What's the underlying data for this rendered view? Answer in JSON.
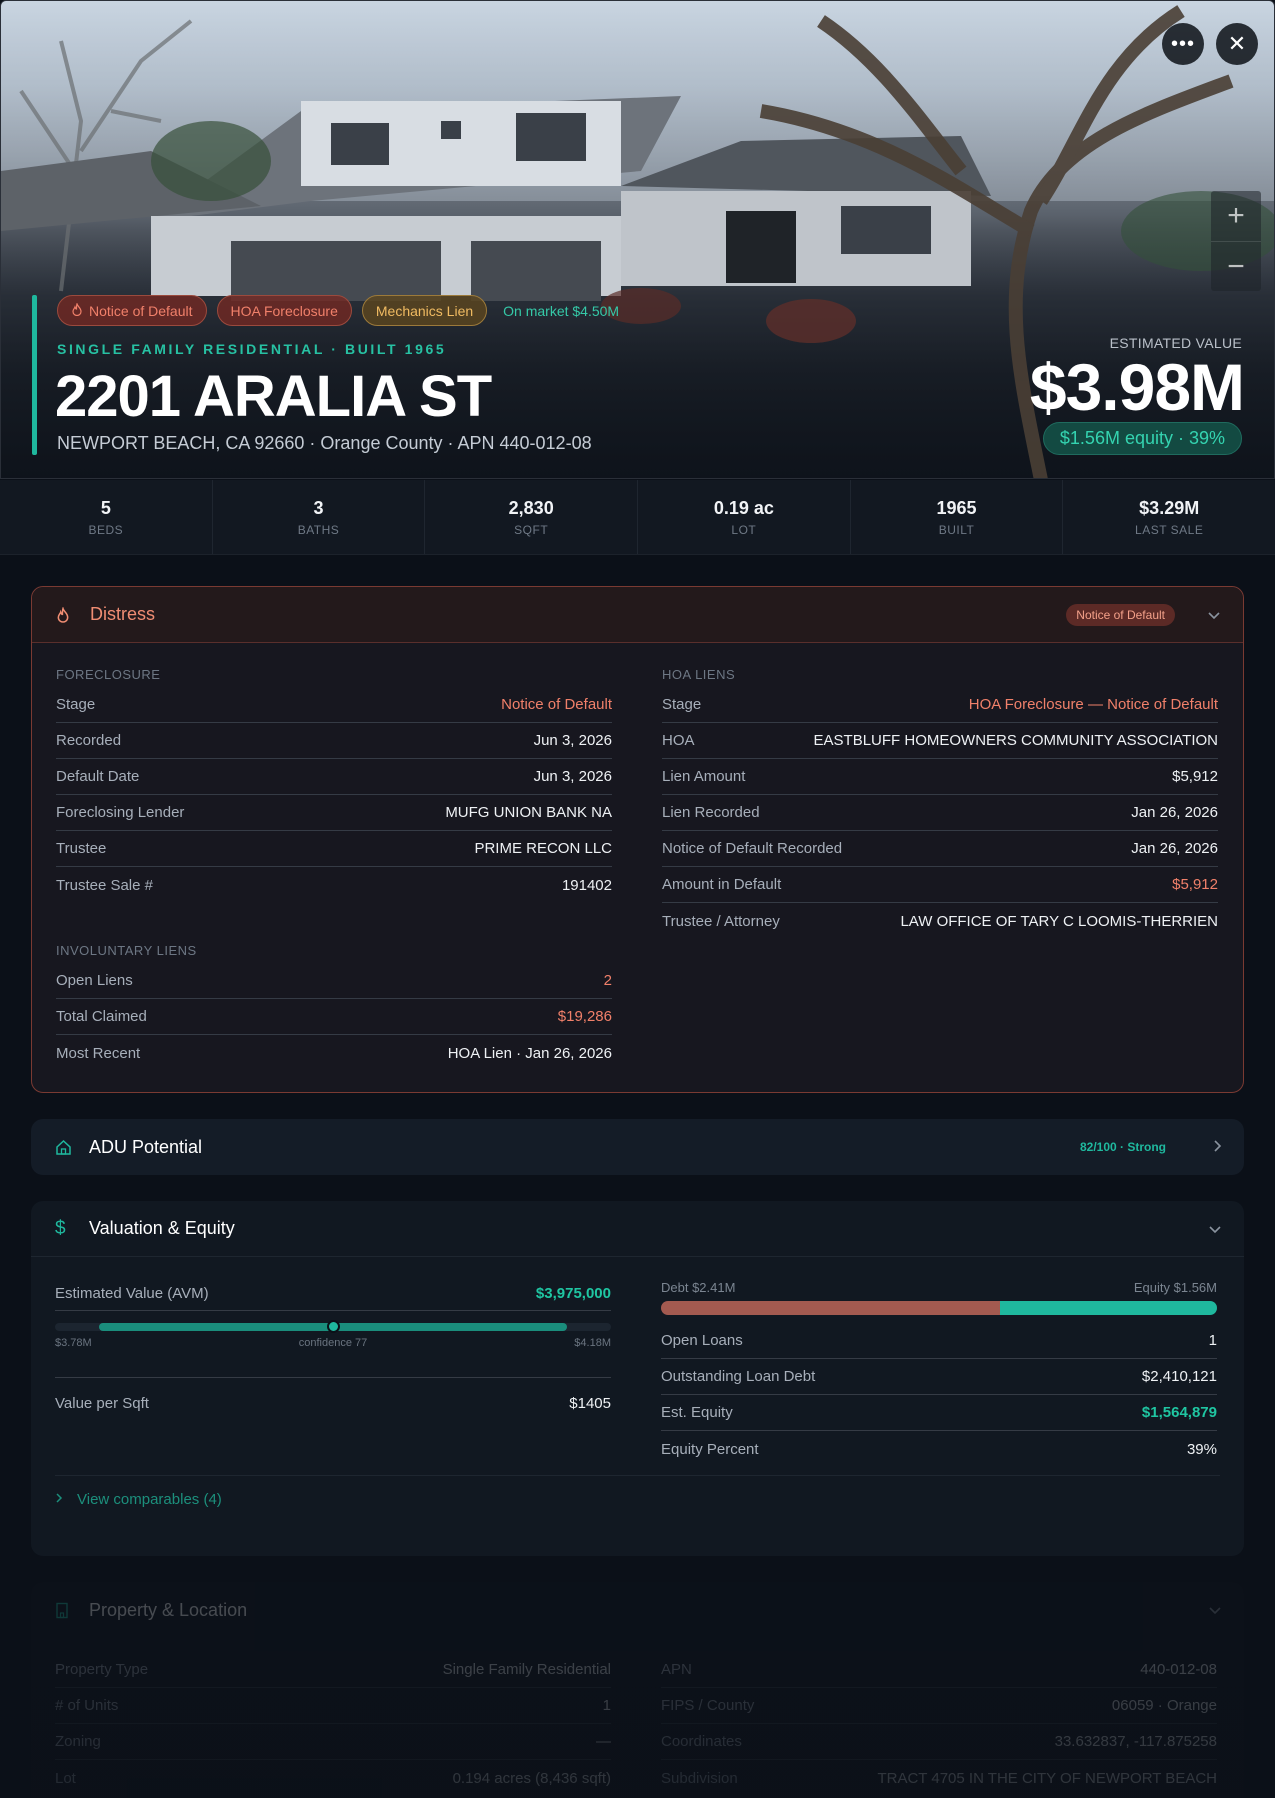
{
  "hero": {
    "tags": [
      {
        "label": "Notice of Default",
        "style": "red",
        "icon": "flame-icon"
      },
      {
        "label": "HOA Foreclosure",
        "style": "red"
      },
      {
        "label": "Mechanics Lien",
        "style": "amber"
      },
      {
        "label": "On market $4.50M",
        "style": "green"
      }
    ],
    "subtitle": "SINGLE FAMILY RESIDENTIAL · BUILT 1965",
    "address": "2201 ARALIA ST",
    "location": "NEWPORT BEACH, CA 92660 · Orange County · APN 440-012-08",
    "est_label": "ESTIMATED VALUE",
    "est_value": "$3.98M",
    "equity_pill": "$1.56M equity · 39%",
    "more_icon": "more-horizontal-icon",
    "close_icon": "close-icon",
    "zoom_in": "+",
    "zoom_out": "−"
  },
  "stats": [
    {
      "value": "5",
      "label": "BEDS"
    },
    {
      "value": "3",
      "label": "BATHS"
    },
    {
      "value": "2,830",
      "label": "SQFT"
    },
    {
      "value": "0.19 ac",
      "label": "LOT"
    },
    {
      "value": "1965",
      "label": "BUILT"
    },
    {
      "value": "$3.29M",
      "label": "LAST SALE"
    }
  ],
  "distress": {
    "title": "Distress",
    "badge": "Notice of Default",
    "foreclosure": {
      "label": "FORECLOSURE",
      "rows": [
        {
          "k": "Stage",
          "v": "Notice of Default",
          "tone": "red"
        },
        {
          "k": "Recorded",
          "v": "Jun 3, 2026"
        },
        {
          "k": "Default Date",
          "v": "Jun 3, 2026"
        },
        {
          "k": "Foreclosing Lender",
          "v": "MUFG UNION BANK NA"
        },
        {
          "k": "Trustee",
          "v": "PRIME RECON LLC"
        },
        {
          "k": "Trustee Sale #",
          "v": "191402"
        }
      ]
    },
    "involuntary": {
      "label": "INVOLUNTARY LIENS",
      "rows": [
        {
          "k": "Open Liens",
          "v": "2",
          "tone": "red"
        },
        {
          "k": "Total Claimed",
          "v": "$19,286",
          "tone": "red"
        },
        {
          "k": "Most Recent",
          "v": "HOA Lien · Jan 26, 2026"
        }
      ]
    },
    "hoa": {
      "label": "HOA LIENS",
      "rows": [
        {
          "k": "Stage",
          "v": "HOA Foreclosure — Notice of Default",
          "tone": "red"
        },
        {
          "k": "HOA",
          "v": "EASTBLUFF HOMEOWNERS COMMUNITY ASSOCIATION"
        },
        {
          "k": "Lien Amount",
          "v": "$5,912"
        },
        {
          "k": "Lien Recorded",
          "v": "Jan 26, 2026"
        },
        {
          "k": "Notice of Default Recorded",
          "v": "Jan 26, 2026"
        },
        {
          "k": "Amount in Default",
          "v": "$5,912",
          "tone": "red"
        },
        {
          "k": "Trustee / Attorney",
          "v": "LAW OFFICE OF TARY C LOOMIS-THERRIEN"
        }
      ]
    }
  },
  "adu": {
    "title": "ADU Potential",
    "score": "82/100 · Strong"
  },
  "valuation": {
    "title": "Valuation & Equity",
    "avm_label": "Estimated Value (AVM)",
    "avm_value": "$3,975,000",
    "range_low": "$3.78M",
    "range_high": "$4.18M",
    "confidence": "confidence 77",
    "range_fill_start": 0.08,
    "range_fill_end": 0.92,
    "avm_position": 0.5,
    "per_sqft_label": "Value per Sqft",
    "per_sqft_value": "$1405",
    "debt_label": "Debt $2.41M",
    "equity_label": "Equity $1.56M",
    "debt_fraction": 0.61,
    "rows": [
      {
        "k": "Open Loans",
        "v": "1"
      },
      {
        "k": "Outstanding Loan Debt",
        "v": "$2,410,121"
      },
      {
        "k": "Est. Equity",
        "v": "$1,564,879",
        "tone": "green"
      },
      {
        "k": "Equity Percent",
        "v": "39%"
      }
    ],
    "comps_link": "View comparables (4)"
  },
  "property": {
    "title": "Property & Location",
    "left_rows": [
      {
        "k": "Property Type",
        "v": "Single Family Residential"
      },
      {
        "k": "# of Units",
        "v": "1"
      },
      {
        "k": "Zoning",
        "v": "—"
      },
      {
        "k": "Lot",
        "v": "0.194 acres (8,436 sqft)"
      }
    ],
    "right_rows": [
      {
        "k": "APN",
        "v": "440-012-08"
      },
      {
        "k": "FIPS / County",
        "v": "06059 · Orange"
      },
      {
        "k": "Coordinates",
        "v": "33.632837, -117.875258"
      },
      {
        "k": "Subdivision",
        "v": "TRACT 4705 IN THE CITY OF NEWPORT BEACH"
      }
    ]
  },
  "colors": {
    "accent": "#1fb89e",
    "danger": "#f0806a",
    "amber": "#f0bb62"
  }
}
